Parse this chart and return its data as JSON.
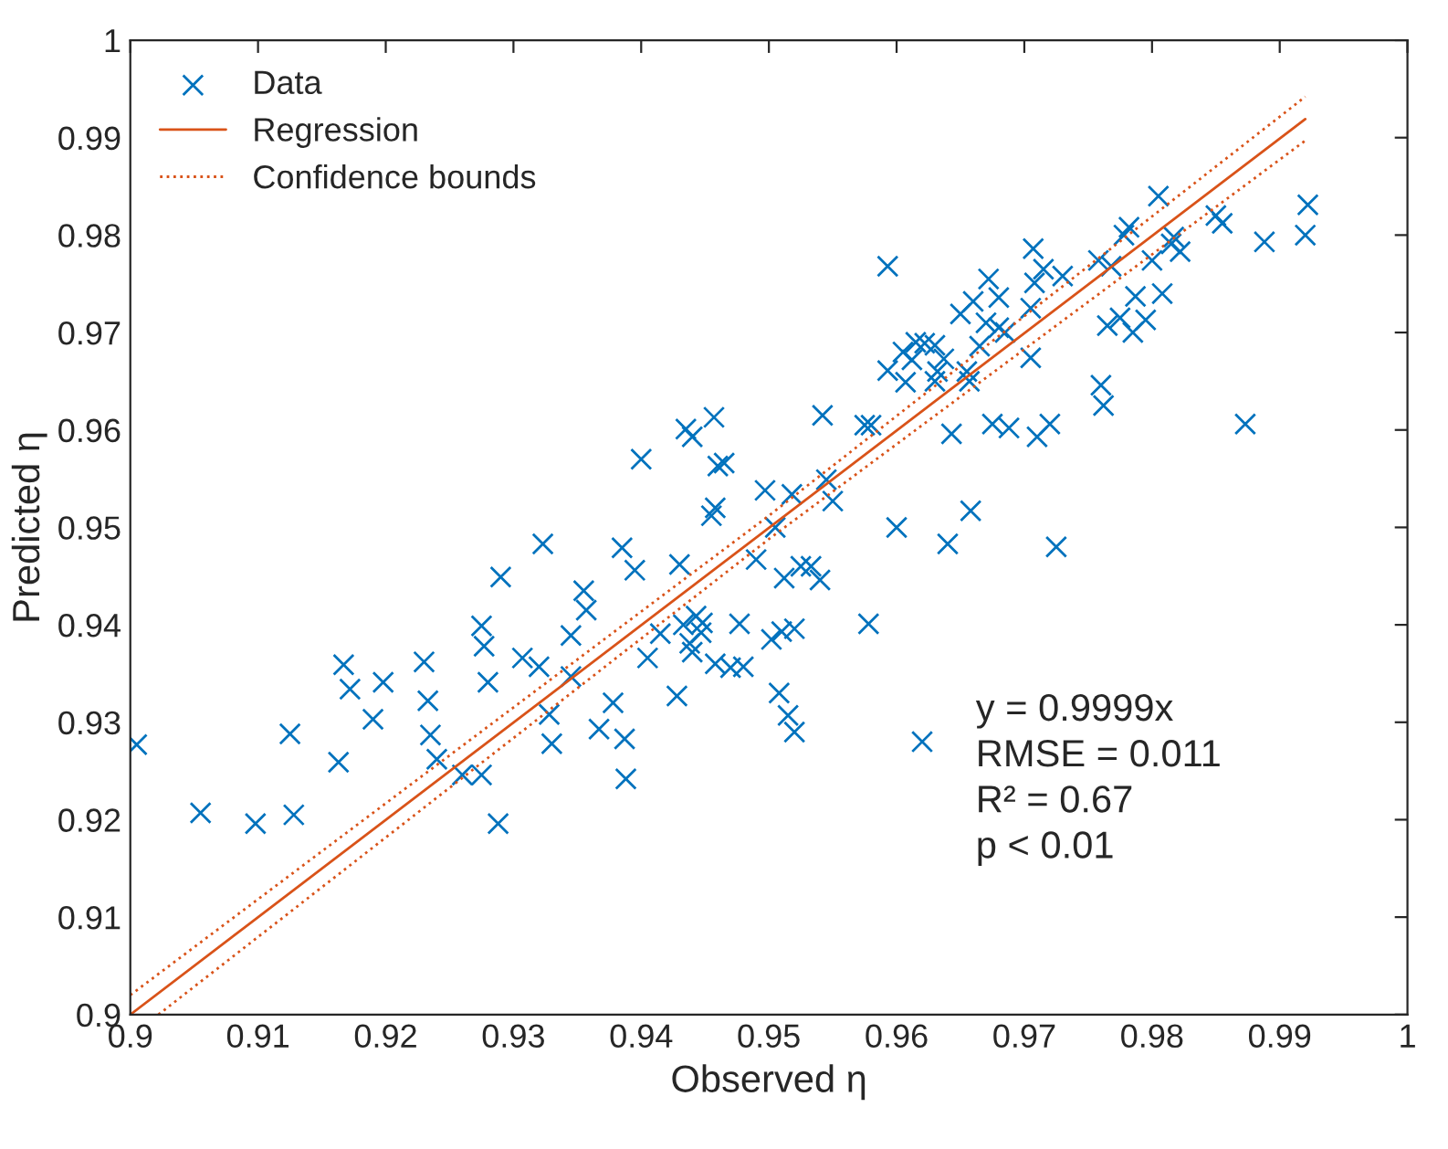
{
  "chart_data": {
    "type": "scatter",
    "xlabel": "Observed η",
    "ylabel": "Predicted η",
    "xlim": [
      0.9,
      1
    ],
    "ylim": [
      0.9,
      1
    ],
    "xticks": [
      0.9,
      0.91,
      0.92,
      0.93,
      0.94,
      0.95,
      0.96,
      0.97,
      0.98,
      0.99,
      1
    ],
    "yticks": [
      0.9,
      0.91,
      0.92,
      0.93,
      0.94,
      0.95,
      0.96,
      0.97,
      0.98,
      0.99,
      1
    ],
    "grid": false,
    "legend": "top left",
    "annotations": [
      "y = 0.9999x",
      "RMSE = 0.011",
      "R² = 0.67",
      "p < 0.01"
    ],
    "series": [
      {
        "name": "Data",
        "marker": "cross",
        "color": "#0072bd",
        "x": [
          0.9005,
          0.9055,
          0.9098,
          0.9125,
          0.9128,
          0.9163,
          0.9167,
          0.9172,
          0.9198,
          0.919,
          0.923,
          0.9233,
          0.9235,
          0.924,
          0.926,
          0.9275,
          0.9275,
          0.9277,
          0.928,
          0.9288,
          0.929,
          0.9307,
          0.932,
          0.9323,
          0.9328,
          0.933,
          0.9345,
          0.9345,
          0.9355,
          0.9357,
          0.9367,
          0.9378,
          0.9385,
          0.9387,
          0.9388,
          0.9395,
          0.94,
          0.9405,
          0.9415,
          0.9428,
          0.943,
          0.9433,
          0.9435,
          0.944,
          0.9438,
          0.9443,
          0.944,
          0.9447,
          0.9448,
          0.9455,
          0.9457,
          0.9458,
          0.946,
          0.9458,
          0.9465,
          0.947,
          0.9477,
          0.948,
          0.949,
          0.9497,
          0.9502,
          0.9505,
          0.9508,
          0.951,
          0.9512,
          0.9515,
          0.952,
          0.9518,
          0.952,
          0.9525,
          0.9533,
          0.954,
          0.9542,
          0.9545,
          0.955,
          0.9575,
          0.958,
          0.9578,
          0.9593,
          0.9593,
          0.96,
          0.9605,
          0.9607,
          0.9612,
          0.9615,
          0.962,
          0.9622,
          0.963,
          0.963,
          0.9632,
          0.9637,
          0.964,
          0.9643,
          0.965,
          0.9655,
          0.9657,
          0.9658,
          0.966,
          0.9665,
          0.967,
          0.9672,
          0.9675,
          0.968,
          0.968,
          0.9685,
          0.9688,
          0.9705,
          0.9705,
          0.9707,
          0.9708,
          0.971,
          0.9715,
          0.972,
          0.9725,
          0.973,
          0.9758,
          0.976,
          0.9762,
          0.9765,
          0.9768,
          0.9775,
          0.9778,
          0.9782,
          0.9785,
          0.9787,
          0.9795,
          0.98,
          0.9805,
          0.9808,
          0.9815,
          0.9817,
          0.9822,
          0.985,
          0.9855,
          0.9873,
          0.9888,
          0.992,
          0.9922
        ],
        "values": [
          0.9277,
          0.9207,
          0.9196,
          0.9288,
          0.9205,
          0.9259,
          0.9359,
          0.9334,
          0.9341,
          0.9303,
          0.9362,
          0.9322,
          0.9287,
          0.9262,
          0.9246,
          0.9246,
          0.9399,
          0.9378,
          0.9341,
          0.9196,
          0.9449,
          0.9366,
          0.9357,
          0.9483,
          0.9308,
          0.9278,
          0.9347,
          0.9389,
          0.9435,
          0.9415,
          0.9293,
          0.932,
          0.9479,
          0.9283,
          0.9242,
          0.9456,
          0.957,
          0.9366,
          0.9391,
          0.9327,
          0.9462,
          0.94,
          0.9601,
          0.9593,
          0.9381,
          0.9409,
          0.9372,
          0.9392,
          0.9402,
          0.9512,
          0.9613,
          0.952,
          0.9563,
          0.936,
          0.9566,
          0.9356,
          0.9401,
          0.9357,
          0.9467,
          0.9538,
          0.9385,
          0.95,
          0.933,
          0.9393,
          0.9448,
          0.9307,
          0.929,
          0.9534,
          0.9396,
          0.946,
          0.946,
          0.9446,
          0.9615,
          0.9549,
          0.9527,
          0.9605,
          0.9605,
          0.9401,
          0.9768,
          0.9661,
          0.95,
          0.968,
          0.9649,
          0.9672,
          0.969,
          0.928,
          0.9689,
          0.9687,
          0.965,
          0.966,
          0.9673,
          0.9483,
          0.9596,
          0.9719,
          0.966,
          0.965,
          0.9517,
          0.9732,
          0.9686,
          0.971,
          0.9755,
          0.9606,
          0.9705,
          0.9736,
          0.97,
          0.9602,
          0.9725,
          0.9674,
          0.9786,
          0.9751,
          0.9593,
          0.9765,
          0.9606,
          0.948,
          0.9758,
          0.9774,
          0.9646,
          0.9625,
          0.9707,
          0.9768,
          0.9715,
          0.98,
          0.9808,
          0.97,
          0.9737,
          0.9713,
          0.9774,
          0.984,
          0.974,
          0.9791,
          0.9798,
          0.9783,
          0.982,
          0.9812,
          0.9606,
          0.9793,
          0.98,
          0.9831
        ]
      },
      {
        "name": "Regression",
        "type": "line",
        "line_style": "solid",
        "color": "#d95319",
        "x": [
          0.9,
          0.992
        ],
        "values": [
          0.9,
          0.9919
        ]
      },
      {
        "name": "Confidence bounds",
        "type": "line",
        "line_style": "dotted",
        "color": "#d95319",
        "x": [
          0.9,
          0.95,
          0.992
        ],
        "values": [
          0.902,
          0.9512,
          0.9942
        ]
      },
      {
        "type": "line",
        "line_style": "dotted",
        "color": "#d95319",
        "x": [
          0.9022,
          0.95,
          0.992
        ],
        "values": [
          0.9,
          0.9488,
          0.9897
        ]
      }
    ]
  }
}
